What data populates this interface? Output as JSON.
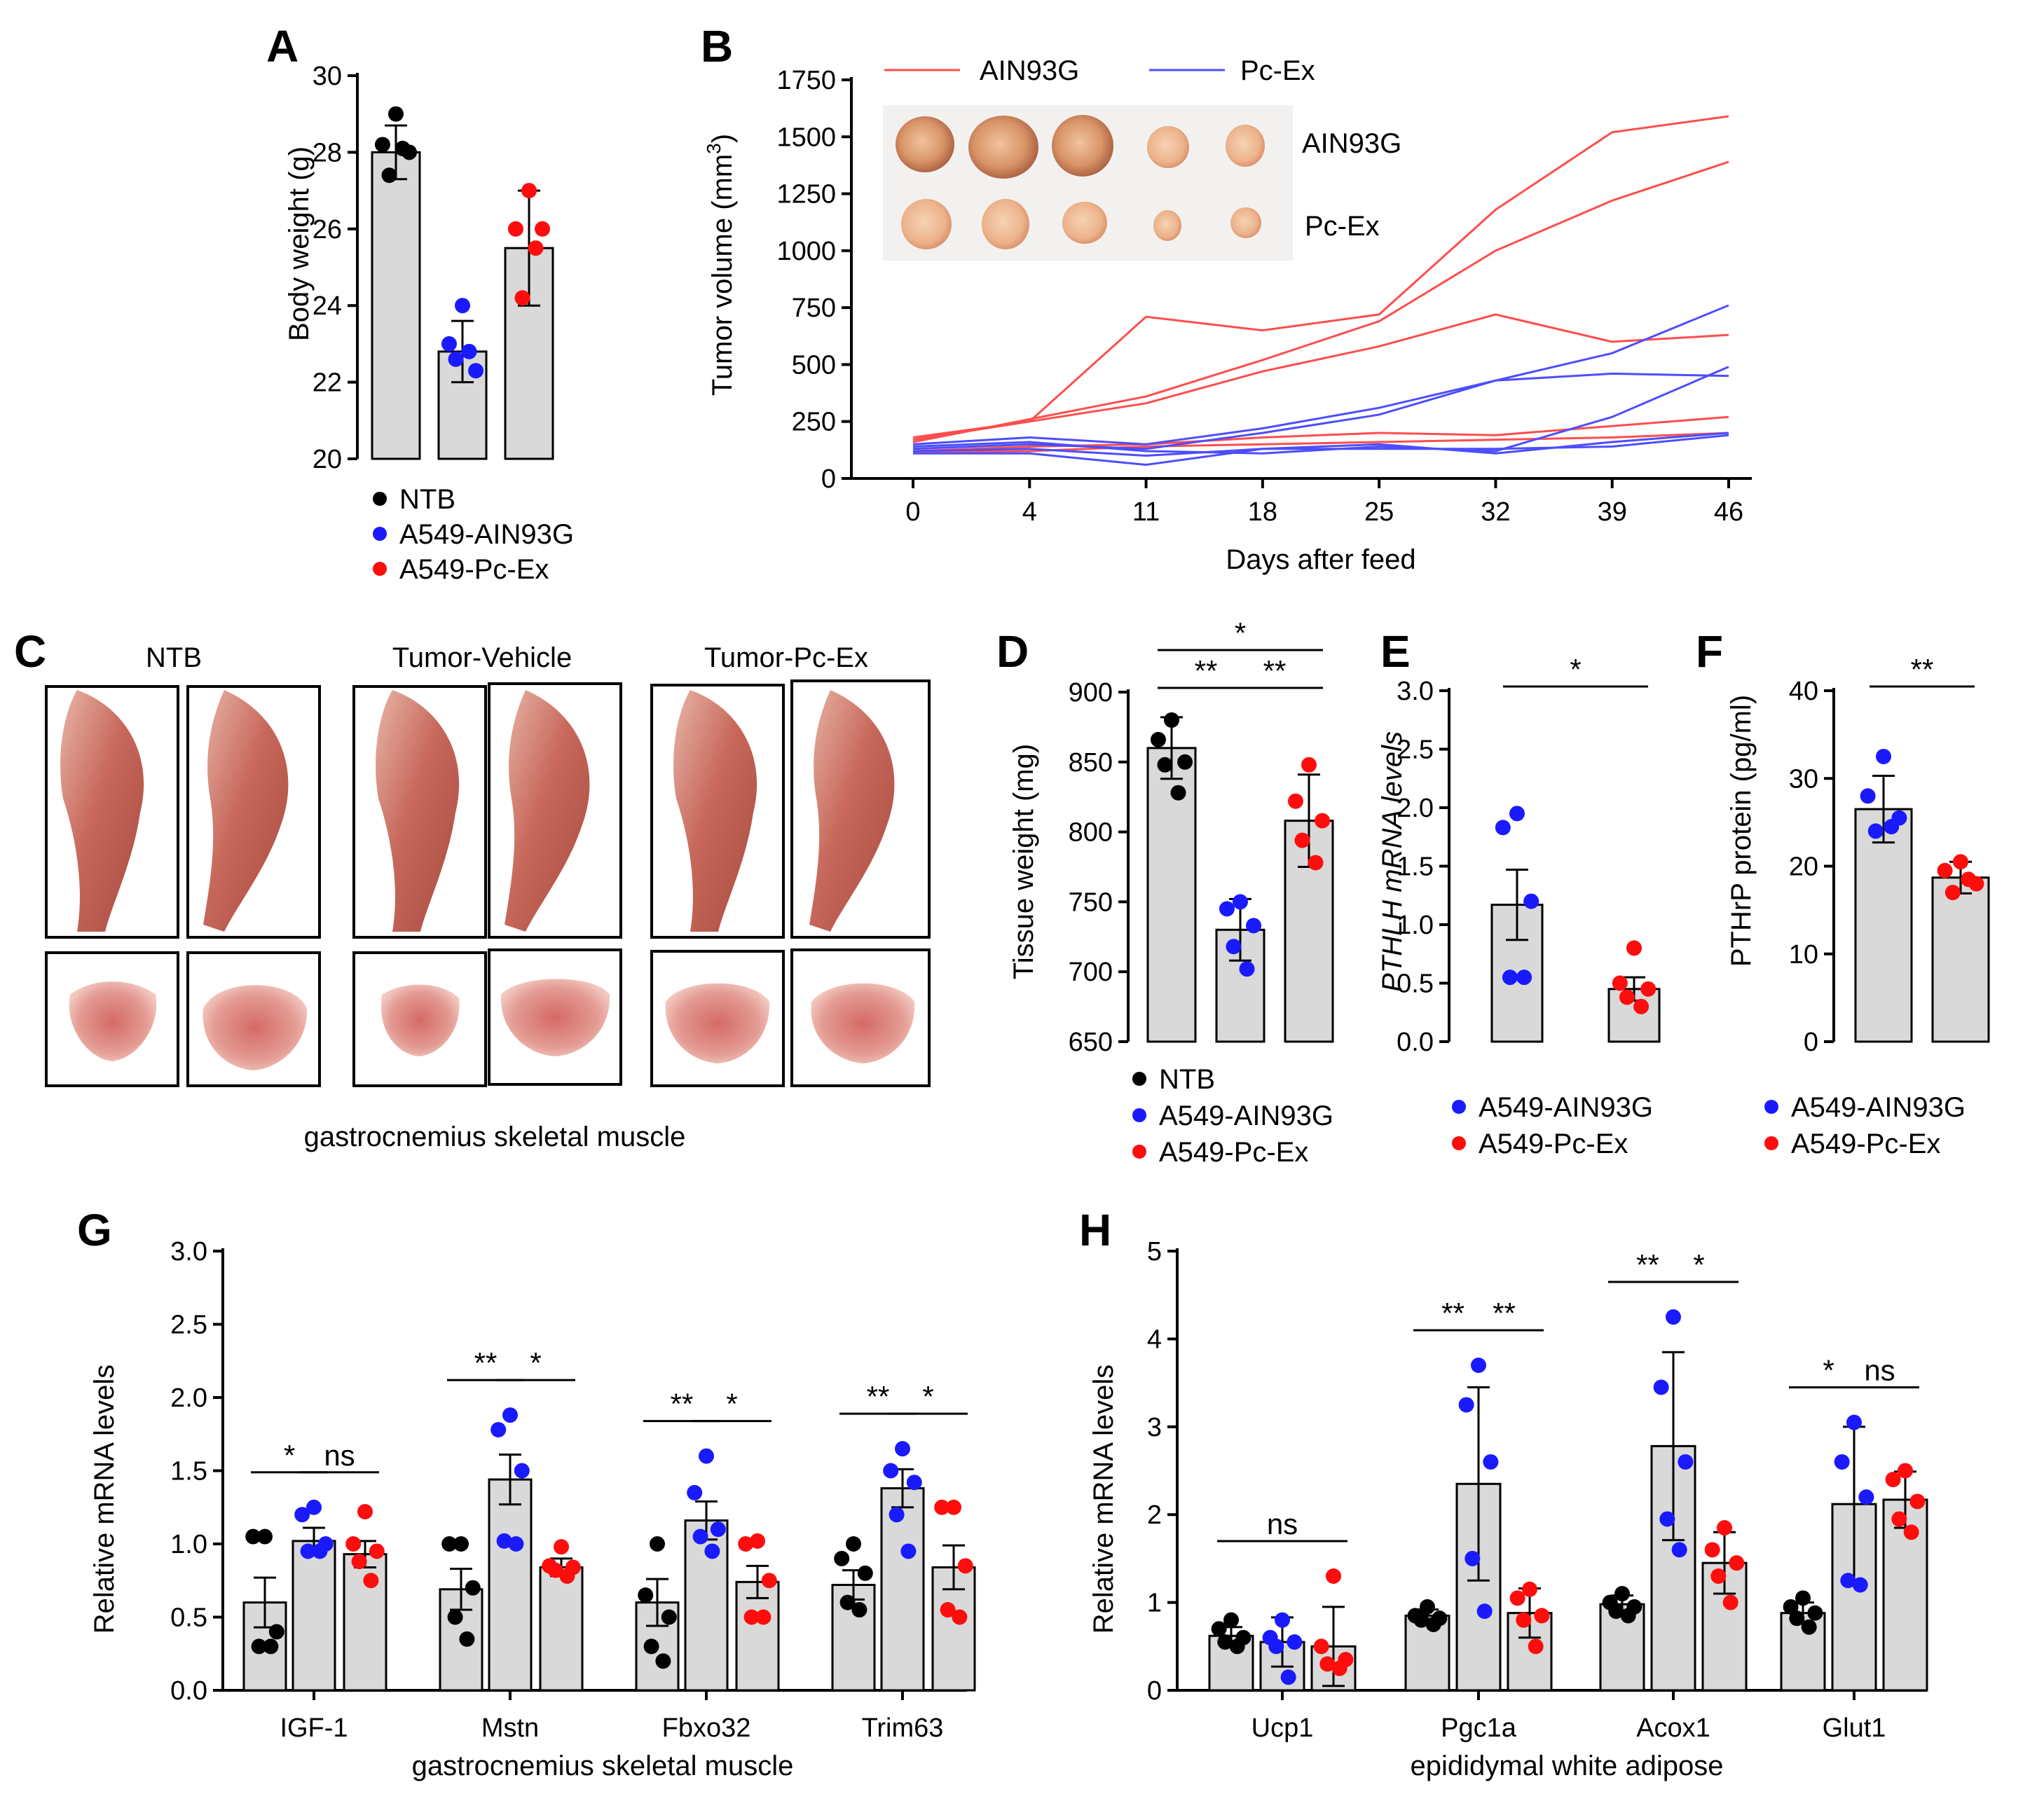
{
  "colors": {
    "ntb": "#000000",
    "ain": "#1a1aff",
    "pcex": "#ff0d0d",
    "bar_fill": "#d9d9d9",
    "line_ain": "#ff4d4d",
    "line_pcex": "#4d4dff"
  },
  "legends": {
    "A": [
      "NTB",
      "A549-AIN93G",
      "A549-Pc-Ex"
    ],
    "D": [
      "NTB",
      "A549-AIN93G",
      "A549-Pc-Ex"
    ],
    "E": [
      "A549-AIN93G",
      "A549-Pc-Ex"
    ],
    "F": [
      "A549-AIN93G",
      "A549-Pc-Ex"
    ]
  },
  "panelC": {
    "label": "C",
    "groups": [
      "NTB",
      "Tumor-Vehicle",
      "Tumor-Pc-Ex"
    ],
    "caption": "gastrocnemius skeletal muscle"
  },
  "panelB_photo": {
    "row_labels": [
      "AIN93G",
      "Pc-Ex"
    ]
  },
  "chart_data": [
    {
      "id": "A",
      "label": "A",
      "type": "bar",
      "ylabel": "Body weight (g)",
      "xlabel": "",
      "ylim": [
        20,
        30
      ],
      "yticks": [
        20,
        22,
        24,
        26,
        28,
        30
      ],
      "groups": [
        {
          "name": "NTB",
          "mean": 28.0,
          "err": 0.7,
          "points": [
            29.0,
            28.2,
            28.0,
            27.4,
            28.1
          ]
        },
        {
          "name": "A549-AIN93G",
          "mean": 22.8,
          "err": 0.8,
          "points": [
            24.0,
            23.0,
            22.3,
            22.6,
            22.8
          ]
        },
        {
          "name": "A549-Pc-Ex",
          "mean": 25.5,
          "err": 1.5,
          "points": [
            27.0,
            26.0,
            26.0,
            24.2,
            25.5
          ]
        }
      ]
    },
    {
      "id": "B",
      "label": "B",
      "type": "line",
      "ylabel": "Tumor volume (mm3)",
      "xlabel": "Days after feed",
      "ylim": [
        0,
        1750
      ],
      "yticks": [
        0,
        250,
        500,
        750,
        1000,
        1250,
        1500,
        1750
      ],
      "x": [
        0,
        4,
        11,
        18,
        25,
        32,
        39,
        46
      ],
      "legend": [
        "AIN93G",
        "Pc-Ex"
      ],
      "series": [
        {
          "name": "AIN93G",
          "values": [
            170,
            250,
            710,
            650,
            720,
            1180,
            1520,
            1590
          ]
        },
        {
          "name": "AIN93G",
          "values": [
            160,
            260,
            360,
            520,
            690,
            1000,
            1220,
            1390
          ]
        },
        {
          "name": "AIN93G",
          "values": [
            180,
            250,
            330,
            470,
            580,
            720,
            600,
            630
          ]
        },
        {
          "name": "AIN93G",
          "values": [
            120,
            140,
            150,
            180,
            200,
            190,
            230,
            270
          ]
        },
        {
          "name": "AIN93G",
          "values": [
            115,
            120,
            140,
            150,
            160,
            170,
            180,
            200
          ]
        },
        {
          "name": "Pc-Ex",
          "values": [
            150,
            180,
            150,
            220,
            310,
            430,
            550,
            760
          ]
        },
        {
          "name": "Pc-Ex",
          "values": [
            130,
            150,
            130,
            200,
            280,
            430,
            460,
            450
          ]
        },
        {
          "name": "Pc-Ex",
          "values": [
            140,
            160,
            120,
            110,
            140,
            120,
            270,
            490
          ]
        },
        {
          "name": "Pc-Ex",
          "values": [
            120,
            130,
            100,
            130,
            150,
            110,
            160,
            200
          ]
        },
        {
          "name": "Pc-Ex",
          "values": [
            110,
            110,
            60,
            130,
            130,
            130,
            140,
            190
          ]
        }
      ]
    },
    {
      "id": "D",
      "label": "D",
      "type": "bar",
      "ylabel": "Tissue weight (mg)",
      "xlabel": "",
      "ylim": [
        650,
        900
      ],
      "yticks": [
        650,
        700,
        750,
        800,
        850,
        900
      ],
      "groups": [
        {
          "name": "NTB",
          "mean": 860,
          "err": 22,
          "points": [
            880,
            866,
            850,
            848,
            828
          ]
        },
        {
          "name": "A549-AIN93G",
          "mean": 730,
          "err": 22,
          "points": [
            750,
            745,
            733,
            718,
            702
          ]
        },
        {
          "name": "A549-Pc-Ex",
          "mean": 808,
          "err": 33,
          "points": [
            848,
            822,
            808,
            794,
            778
          ]
        }
      ],
      "sig": [
        {
          "from": 0,
          "to": 1,
          "text": "**",
          "level": 1
        },
        {
          "from": 1,
          "to": 2,
          "text": "**",
          "level": 1
        },
        {
          "from": 0,
          "to": 2,
          "text": "*",
          "level": 2
        }
      ]
    },
    {
      "id": "E",
      "label": "E",
      "type": "bar",
      "ylabel": "PTHLH mRNA levels",
      "xlabel": "",
      "ylim": [
        0,
        3.0
      ],
      "yticks": [
        0.0,
        0.5,
        1.0,
        1.5,
        2.0,
        2.5,
        3.0
      ],
      "tick_decimals": 1,
      "groups": [
        {
          "name": "A549-AIN93G",
          "mean": 1.17,
          "err": 0.3,
          "points": [
            1.95,
            1.83,
            1.2,
            0.55,
            0.55
          ]
        },
        {
          "name": "A549-Pc-Ex",
          "mean": 0.45,
          "err": 0.1,
          "points": [
            0.8,
            0.5,
            0.45,
            0.38,
            0.3
          ]
        }
      ],
      "sig": [
        {
          "from": 0,
          "to": 1,
          "text": "*",
          "level": 1
        }
      ]
    },
    {
      "id": "F",
      "label": "F",
      "type": "bar",
      "ylabel": "PTHrP protein (pg/ml)",
      "xlabel": "",
      "ylim": [
        0,
        40
      ],
      "yticks": [
        0,
        10,
        20,
        30,
        40
      ],
      "groups": [
        {
          "name": "A549-AIN93G",
          "mean": 26.5,
          "err": 3.8,
          "points": [
            32.5,
            28.0,
            25.5,
            24.0,
            24.5
          ]
        },
        {
          "name": "A549-Pc-Ex",
          "mean": 18.7,
          "err": 1.8,
          "points": [
            20.5,
            19.5,
            18.0,
            17.0,
            18.5
          ]
        }
      ],
      "sig": [
        {
          "from": 0,
          "to": 1,
          "text": "**",
          "level": 1
        }
      ]
    },
    {
      "id": "G",
      "label": "G",
      "type": "grouped-bar",
      "ylabel": "Relative mRNA levels",
      "xlabel": "gastrocnemius skeletal muscle",
      "ylim": [
        0,
        3.0
      ],
      "yticks": [
        0.0,
        0.5,
        1.0,
        1.5,
        2.0,
        2.5,
        3.0
      ],
      "tick_decimals": 1,
      "categories": [
        "IGF-1",
        "Mstn",
        "Fbxo32",
        "Trim63"
      ],
      "data": [
        [
          {
            "mean": 0.6,
            "err": 0.17,
            "points": [
              1.05,
              1.05,
              0.4,
              0.3,
              0.3
            ]
          },
          {
            "mean": 1.02,
            "err": 0.09,
            "points": [
              1.25,
              1.2,
              1.0,
              0.95,
              0.95
            ]
          },
          {
            "mean": 0.93,
            "err": 0.09,
            "points": [
              1.22,
              1.0,
              0.95,
              0.88,
              0.75
            ]
          }
        ],
        [
          {
            "mean": 0.69,
            "err": 0.14,
            "points": [
              1.0,
              1.0,
              0.7,
              0.5,
              0.35
            ]
          },
          {
            "mean": 1.44,
            "err": 0.17,
            "points": [
              1.88,
              1.78,
              1.5,
              1.02,
              1.0
            ]
          },
          {
            "mean": 0.84,
            "err": 0.06,
            "points": [
              0.98,
              0.85,
              0.84,
              0.82,
              0.78
            ]
          }
        ],
        [
          {
            "mean": 0.6,
            "err": 0.16,
            "points": [
              1.0,
              0.65,
              0.5,
              0.3,
              0.2
            ]
          },
          {
            "mean": 1.16,
            "err": 0.13,
            "points": [
              1.6,
              1.35,
              1.1,
              1.05,
              0.95
            ]
          },
          {
            "mean": 0.74,
            "err": 0.11,
            "points": [
              1.02,
              1.0,
              0.75,
              0.5,
              0.5
            ]
          }
        ],
        [
          {
            "mean": 0.72,
            "err": 0.1,
            "points": [
              1.0,
              0.9,
              0.8,
              0.6,
              0.55
            ]
          },
          {
            "mean": 1.38,
            "err": 0.13,
            "points": [
              1.65,
              1.5,
              1.42,
              1.2,
              0.95
            ]
          },
          {
            "mean": 0.84,
            "err": 0.15,
            "points": [
              1.25,
              1.25,
              0.85,
              0.55,
              0.5
            ]
          }
        ]
      ],
      "sig": [
        {
          "cat": 0,
          "from": 0,
          "to": 1,
          "text": "*"
        },
        {
          "cat": 0,
          "from": 1,
          "to": 2,
          "text": "ns"
        },
        {
          "cat": 1,
          "from": 0,
          "to": 1,
          "text": "**"
        },
        {
          "cat": 1,
          "from": 1,
          "to": 2,
          "text": "*"
        },
        {
          "cat": 2,
          "from": 0,
          "to": 1,
          "text": "**"
        },
        {
          "cat": 2,
          "from": 1,
          "to": 2,
          "text": "*"
        },
        {
          "cat": 3,
          "from": 0,
          "to": 1,
          "text": "**"
        },
        {
          "cat": 3,
          "from": 1,
          "to": 2,
          "text": "*"
        }
      ]
    },
    {
      "id": "H",
      "label": "H",
      "type": "grouped-bar",
      "ylabel": "Relative mRNA levels",
      "xlabel": "epididymal white adipose",
      "ylim": [
        0,
        5
      ],
      "yticks": [
        0,
        1,
        2,
        3,
        4,
        5
      ],
      "categories": [
        "Ucp1",
        "Pgc1a",
        "Acox1",
        "Glut1"
      ],
      "data": [
        [
          {
            "mean": 0.62,
            "err": 0.1,
            "points": [
              0.8,
              0.7,
              0.6,
              0.55,
              0.5
            ]
          },
          {
            "mean": 0.55,
            "err": 0.28,
            "points": [
              0.8,
              0.6,
              0.55,
              0.5,
              0.15
            ]
          },
          {
            "mean": 0.5,
            "err": 0.45,
            "points": [
              1.3,
              0.5,
              0.35,
              0.3,
              0.25
            ]
          }
        ],
        [
          {
            "mean": 0.85,
            "err": 0.07,
            "points": [
              0.95,
              0.85,
              0.82,
              0.8,
              0.75
            ]
          },
          {
            "mean": 2.35,
            "err": 1.1,
            "points": [
              3.7,
              3.25,
              2.6,
              1.5,
              0.9
            ]
          },
          {
            "mean": 0.88,
            "err": 0.28,
            "points": [
              1.15,
              1.05,
              0.85,
              0.8,
              0.5
            ]
          }
        ],
        [
          {
            "mean": 0.98,
            "err": 0.1,
            "points": [
              1.1,
              1.0,
              0.95,
              0.9,
              0.85
            ]
          },
          {
            "mean": 2.78,
            "err": 1.07,
            "points": [
              4.25,
              3.45,
              2.6,
              1.95,
              1.6
            ]
          },
          {
            "mean": 1.45,
            "err": 0.35,
            "points": [
              1.85,
              1.6,
              1.45,
              1.3,
              1.0
            ]
          }
        ],
        [
          {
            "mean": 0.88,
            "err": 0.12,
            "points": [
              1.05,
              0.95,
              0.88,
              0.82,
              0.72
            ]
          },
          {
            "mean": 2.12,
            "err": 0.88,
            "points": [
              3.05,
              2.6,
              2.2,
              1.25,
              1.2
            ]
          },
          {
            "mean": 2.17,
            "err": 0.32,
            "points": [
              2.5,
              2.4,
              2.15,
              1.95,
              1.8
            ]
          }
        ]
      ],
      "sig": [
        {
          "cat": 0,
          "from": 0,
          "to": 2,
          "text": "ns"
        },
        {
          "cat": 1,
          "from": 0,
          "to": 1,
          "text": "**"
        },
        {
          "cat": 1,
          "from": 1,
          "to": 2,
          "text": "**"
        },
        {
          "cat": 2,
          "from": 0,
          "to": 1,
          "text": "**"
        },
        {
          "cat": 2,
          "from": 1,
          "to": 2,
          "text": "*"
        },
        {
          "cat": 3,
          "from": 0,
          "to": 1,
          "text": "*"
        },
        {
          "cat": 3,
          "from": 1,
          "to": 2,
          "text": "ns"
        }
      ]
    }
  ]
}
